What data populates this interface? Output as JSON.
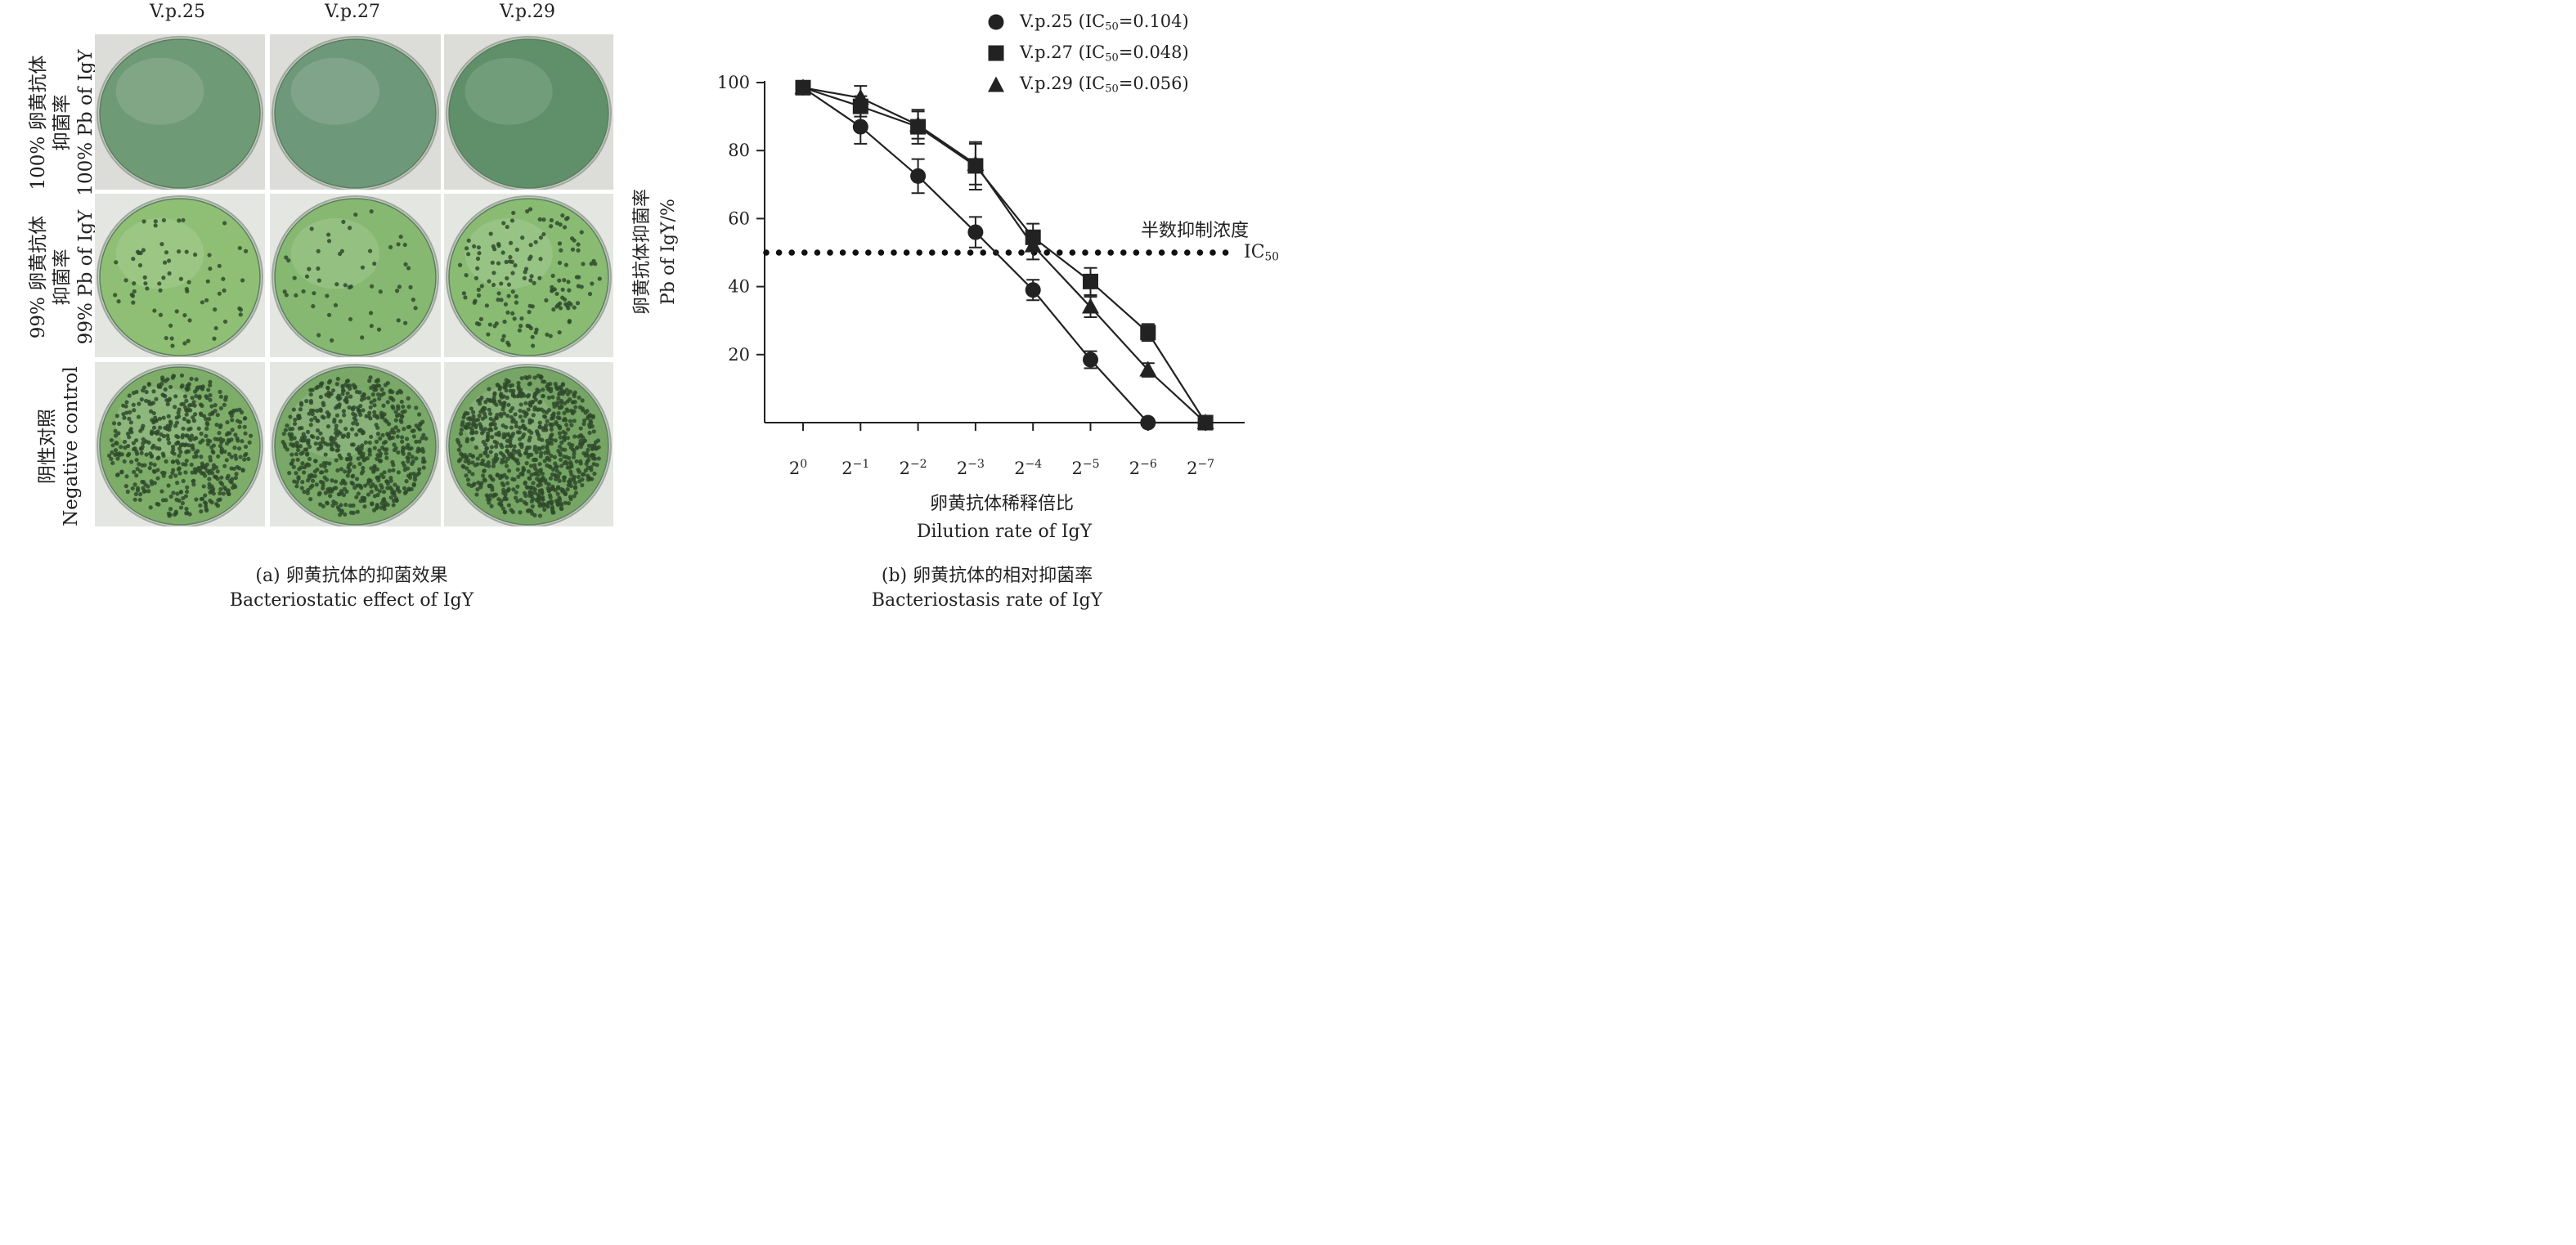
{
  "panel_a": {
    "columns": [
      "V.p.25",
      "V.p.27",
      "V.p.29"
    ],
    "rows": [
      {
        "label_cn_line1": "100% 卵黄抗体",
        "label_cn_line2": "抑菌率",
        "label_en": "100% Pb of IgY",
        "colonies": [
          0,
          0,
          0
        ]
      },
      {
        "label_cn_line1": "99% 卵黄抗体",
        "label_cn_line2": "抑菌率",
        "label_en": "99% Pb of IgY",
        "colonies": [
          70,
          55,
          160
        ]
      },
      {
        "label_cn_line1": "阴性对照",
        "label_cn_line2": "",
        "label_en": "Negative control",
        "colonies": [
          520,
          620,
          820
        ]
      }
    ],
    "caption_cn": "(a) 卵黄抗体的抑菌效果",
    "caption_en": "Bacteriostatic effect of IgY"
  },
  "panel_b": {
    "caption_cn": "(b) 卵黄抗体的相对抑菌率",
    "caption_en": "Bacteriostasis rate of IgY",
    "ic50_label_cn": "半数抑制浓度",
    "ic50_label_en": "IC",
    "ic50_label_sub": "50",
    "legend": [
      {
        "marker": "circle",
        "prefix": "V.p.25 (IC",
        "sub": "50",
        "suffix": "=0.104)"
      },
      {
        "marker": "square",
        "prefix": "V.p.27 (IC",
        "sub": "50",
        "suffix": "=0.048)"
      },
      {
        "marker": "triangle",
        "prefix": "V.p.29 (IC",
        "sub": "50",
        "suffix": "=0.056)"
      }
    ]
  },
  "chart_data": {
    "type": "line",
    "xlabel_cn": "卵黄抗体稀释倍比",
    "xlabel_en": "Dilution rate of IgY",
    "ylabel_cn": "卵黄抗体抑菌率",
    "ylabel_en": "Pb of IgY/%",
    "x_tick_base": "2",
    "x_exponents": [
      "0",
      "−1",
      "−2",
      "−3",
      "−4",
      "−5",
      "−6",
      "−7"
    ],
    "y_ticks": [
      20,
      40,
      60,
      80,
      100
    ],
    "ylim": [
      0,
      100
    ],
    "reference_line": {
      "y": 50,
      "style": "dotted"
    },
    "series": [
      {
        "name": "V.p.25",
        "marker": "circle",
        "values": [
          98.5,
          87,
          72.5,
          56,
          39,
          18.5,
          0,
          0
        ],
        "errors": [
          1.5,
          5,
          5,
          4.5,
          3,
          2.5,
          0,
          0
        ]
      },
      {
        "name": "V.p.27",
        "marker": "square",
        "values": [
          98.5,
          93,
          87,
          75.5,
          54.5,
          41.5,
          26.5,
          0
        ],
        "errors": [
          1.5,
          3,
          5,
          7,
          4,
          4,
          2.5,
          0
        ]
      },
      {
        "name": "V.p.29",
        "marker": "triangle",
        "values": [
          98.5,
          95.5,
          87.5,
          76,
          52,
          34,
          15.5,
          0
        ],
        "errors": [
          1.5,
          3.5,
          4,
          6,
          4,
          3,
          2,
          0
        ]
      }
    ]
  }
}
